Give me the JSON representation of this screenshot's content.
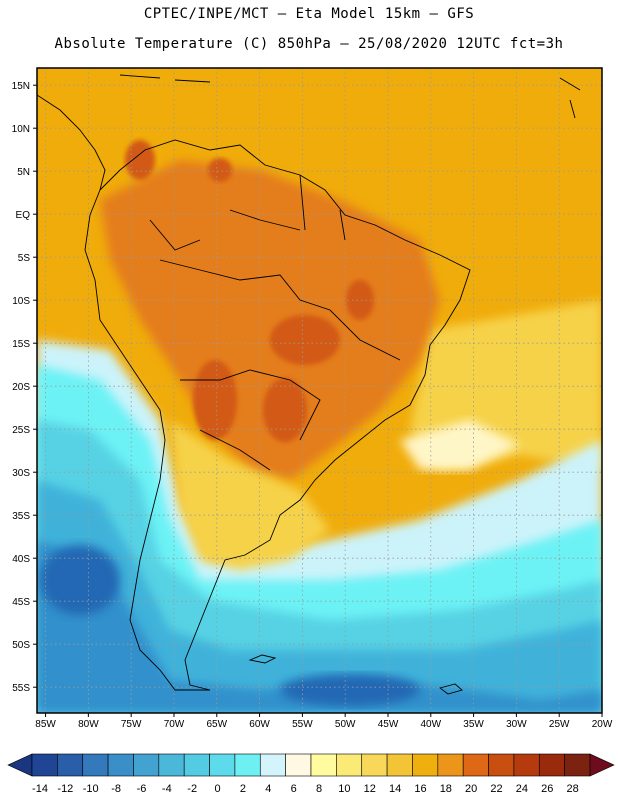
{
  "title": {
    "line1": "CPTEC/INPE/MCT –  Eta Model 15km – GFS",
    "line2": "Absolute Temperature (C) 850hPa – 25/08/2020 12UTC fct=3h"
  },
  "map": {
    "lat_range": [
      -58,
      17
    ],
    "lon_range": [
      -86,
      -20
    ],
    "lat_ticks": [
      "15N",
      "10N",
      "5N",
      "EQ",
      "5S",
      "10S",
      "15S",
      "20S",
      "25S",
      "30S",
      "35S",
      "40S",
      "45S",
      "50S",
      "55S"
    ],
    "lon_ticks": [
      "85W",
      "80W",
      "75W",
      "70W",
      "65W",
      "60W",
      "55W",
      "50W",
      "45W",
      "40W",
      "35W",
      "30W",
      "25W",
      "20W"
    ],
    "bands": [
      {
        "name": "warm-north",
        "color": "#F0AC0A"
      },
      {
        "name": "hot-interior",
        "color": "#E47D1E"
      },
      {
        "name": "hottest-core",
        "color": "#D25A14"
      },
      {
        "name": "mild-subtropics",
        "color": "#F6D24A"
      },
      {
        "name": "cool-transition",
        "color": "#FFF6C8"
      },
      {
        "name": "cold-pale",
        "color": "#CCF3FA"
      },
      {
        "name": "cold-cyan",
        "color": "#6CF2F5"
      },
      {
        "name": "colder-teal",
        "color": "#56D2E4"
      },
      {
        "name": "cold-blue",
        "color": "#41B2DA"
      },
      {
        "name": "very-cold-blue",
        "color": "#3191CC"
      },
      {
        "name": "coldest-blue",
        "color": "#2468B4"
      }
    ]
  },
  "colorbar": {
    "labels": [
      "-14",
      "-12",
      "-10",
      "-8",
      "-6",
      "-4",
      "-2",
      "0",
      "2",
      "4",
      "6",
      "8",
      "10",
      "12",
      "14",
      "16",
      "18",
      "20",
      "22",
      "24",
      "26",
      "28"
    ],
    "colors": [
      "#1F4594",
      "#2B5EA8",
      "#3479BC",
      "#3B8FC8",
      "#43A3D0",
      "#4BB8D9",
      "#53CBE2",
      "#5EDBEA",
      "#6EF0F2",
      "#D3F4FB",
      "#FFF8E3",
      "#FFFB9E",
      "#FBEA75",
      "#F7D85A",
      "#F3C436",
      "#EFB00F",
      "#EB961A",
      "#DE6815",
      "#C94F10",
      "#B53B0E",
      "#9A2A0C",
      "#7C2210"
    ],
    "under_color": "#1A3680",
    "over_color": "#6E0C1E"
  }
}
